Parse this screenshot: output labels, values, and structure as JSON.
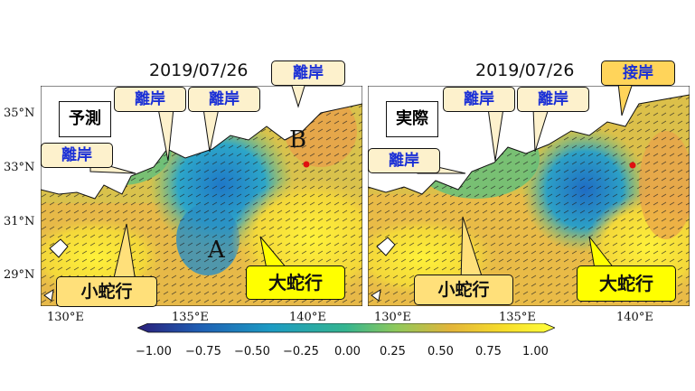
{
  "panels": [
    {
      "date": "2019/07/26",
      "label": "予測",
      "callouts": {
        "top_right": "離岸",
        "mid_a": "離岸",
        "mid_b": "離岸",
        "left": "離岸"
      },
      "path_labels": {
        "small": "小蛇行",
        "large": "大蛇行"
      },
      "point_labels": {
        "a": "A",
        "b": "B"
      },
      "lat_ticks": [
        "35°N",
        "33°N",
        "31°N",
        "29°N"
      ],
      "lon_ticks": [
        "130°E",
        "135°E",
        "140°E"
      ]
    },
    {
      "date": "2019/07/26",
      "label": "実際",
      "callouts": {
        "top_right": "接岸",
        "mid_a": "離岸",
        "mid_b": "離岸",
        "left": "離岸"
      },
      "path_labels": {
        "small": "小蛇行",
        "large": "大蛇行"
      },
      "lon_ticks": [
        "130°E",
        "135°E",
        "140°E"
      ]
    }
  ],
  "colorbar": {
    "min": -1.0,
    "max": 1.0,
    "ticks": [
      "−1.00",
      "−0.75",
      "−0.50",
      "−0.25",
      "0.00",
      "0.25",
      "0.50",
      "0.75",
      "1.00"
    ],
    "colormap": [
      "#2a1f7a",
      "#1f5fb4",
      "#1c9bc3",
      "#35b58f",
      "#8fc95b",
      "#e3b53a",
      "#f7de2a",
      "#ffff3c"
    ]
  },
  "colors": {
    "callout_blue_text": "#1a2fd6",
    "callout_fill": "#fdf1cc",
    "callout_fill_strong": "#ffd45a",
    "path_label_fill": "#ffe07a",
    "large_label_fill": "#ffff00",
    "marker_red": "#e01010"
  }
}
